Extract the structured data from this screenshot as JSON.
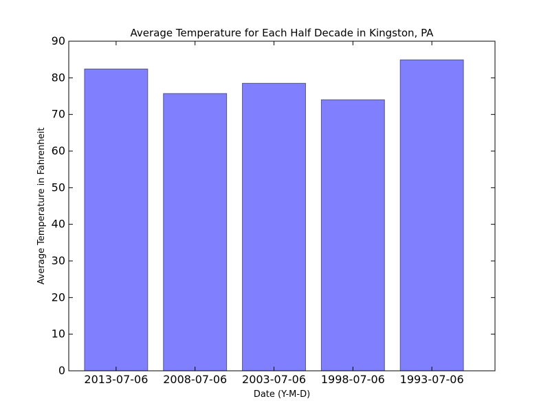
{
  "chart_data": {
    "type": "bar",
    "title": "Average Temperature for Each Half Decade in Kingston, PA",
    "xlabel": "Date (Y-M-D)",
    "ylabel": "Average Temperature in Fahrenheit",
    "categories": [
      "2013-07-06",
      "2008-07-06",
      "2003-07-06",
      "1998-07-06",
      "1993-07-06"
    ],
    "values": [
      82.4,
      75.7,
      78.5,
      74.0,
      84.9
    ],
    "ylim": [
      0,
      90
    ],
    "yticks": [
      0,
      10,
      20,
      30,
      40,
      50,
      60,
      70,
      80,
      90
    ],
    "grid": false,
    "bar_color": "#8080ff",
    "bar_edge_color": "#545487"
  }
}
